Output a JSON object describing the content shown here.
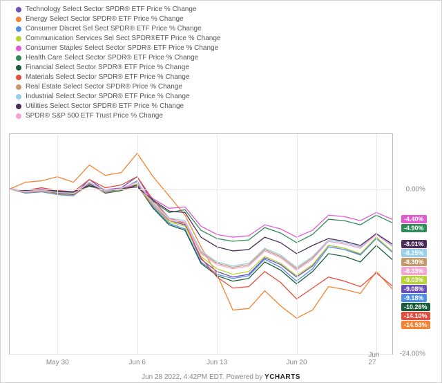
{
  "chart": {
    "type": "line",
    "background_color": "#ffffff",
    "grid_color": "#e8e8e8",
    "axis_color": "#c0c0c0",
    "label_color": "#888888",
    "label_fontsize": 10,
    "legend_fontsize": 10,
    "ylim": [
      -24,
      8
    ],
    "ytick_values": [
      0,
      -24
    ],
    "ytick_labels": [
      "0.00%",
      "-24.00%"
    ],
    "x_categories": [
      "May 30",
      "Jun 6",
      "Jun 13",
      "Jun 20",
      "Jun 27"
    ],
    "x_tick_indices": [
      3,
      8,
      13,
      18,
      23
    ],
    "n_points": 25,
    "series": [
      {
        "name": "Technology Select Sector SPDR® ETF Price % Change",
        "color": "#6b4fbb",
        "final": -9.08,
        "final_label": "-9.08%",
        "y": [
          0,
          -0.4,
          -0.2,
          -0.6,
          -0.9,
          1.4,
          -0.3,
          0.2,
          1.8,
          -2.0,
          -4.6,
          -5.2,
          -10.2,
          -12.0,
          -12.8,
          -12.4,
          -10.0,
          -11.0,
          -12.8,
          -11.2,
          -8.2,
          -8.6,
          -9.5,
          -7.0,
          -9.08
        ]
      },
      {
        "name": "Energy Select Sector SPDR® ETF Price % Change",
        "color": "#f58233",
        "final": -14.53,
        "final_label": "-14.53%",
        "y": [
          0,
          1.0,
          1.2,
          1.8,
          1.0,
          3.5,
          2.0,
          2.4,
          5.2,
          1.8,
          -1.0,
          -3.8,
          -8.4,
          -12.4,
          -17.6,
          -17.4,
          -14.8,
          -17.0,
          -18.8,
          -17.6,
          -14.2,
          -14.6,
          -15.2,
          -12.0,
          -14.53
        ]
      },
      {
        "name": "Consumer Discret Sel Sect SPDR® ETF Price % Change",
        "color": "#4f8fe6",
        "final": -9.18,
        "final_label": "-9.18%",
        "y": [
          0,
          -0.6,
          -0.4,
          -0.8,
          -1.0,
          1.0,
          -0.4,
          0.0,
          1.2,
          -2.6,
          -5.0,
          -5.8,
          -10.6,
          -12.4,
          -13.0,
          -12.6,
          -10.2,
          -11.4,
          -13.4,
          -11.6,
          -8.4,
          -8.8,
          -9.6,
          -7.2,
          -9.18
        ]
      },
      {
        "name": "Communication Services Sel Sect SPDR®ETF Price % Change",
        "color": "#b7d433",
        "final": -9.03,
        "final_label": "-9.03%",
        "y": [
          0,
          -0.5,
          -0.3,
          -0.7,
          -0.8,
          0.8,
          -0.6,
          -0.2,
          0.8,
          -2.4,
          -4.8,
          -5.4,
          -9.8,
          -11.6,
          -12.4,
          -12.0,
          -9.8,
          -10.8,
          -12.6,
          -11.0,
          -8.2,
          -8.6,
          -9.4,
          -7.0,
          -9.03
        ]
      },
      {
        "name": "Consumer Staples Select Sector SPDR® ETF Price % Change",
        "color": "#e05bd3",
        "final": -4.4,
        "final_label": "-4.40%",
        "y": [
          0,
          -0.2,
          0.0,
          -0.2,
          -0.4,
          0.6,
          -0.1,
          0.2,
          0.6,
          -1.4,
          -2.8,
          -2.6,
          -5.4,
          -6.6,
          -7.0,
          -6.8,
          -5.2,
          -5.8,
          -7.0,
          -6.0,
          -3.8,
          -4.0,
          -4.6,
          -3.4,
          -4.4
        ]
      },
      {
        "name": "Health Care Select Sector SPDR® ETF Price % Change",
        "color": "#2e8b57",
        "final": -4.9,
        "final_label": "-4.90%",
        "y": [
          0,
          -0.3,
          -0.1,
          -0.4,
          -0.5,
          0.4,
          -0.2,
          0.0,
          0.4,
          -1.8,
          -3.4,
          -3.0,
          -6.0,
          -7.2,
          -7.6,
          -7.4,
          -5.6,
          -6.4,
          -7.8,
          -6.6,
          -4.4,
          -4.6,
          -5.2,
          -3.8,
          -4.9
        ]
      },
      {
        "name": "Financial Select Sector SPDR® ETF Price % Change",
        "color": "#1a5c3a",
        "final": -10.26,
        "final_label": "-10.26%",
        "y": [
          0,
          -0.4,
          -0.2,
          -0.6,
          -0.8,
          0.8,
          -0.6,
          -0.2,
          0.6,
          -2.8,
          -5.2,
          -6.0,
          -10.8,
          -12.6,
          -13.4,
          -13.0,
          -10.6,
          -11.8,
          -13.8,
          -12.0,
          -9.4,
          -9.8,
          -10.6,
          -8.2,
          -10.26
        ]
      },
      {
        "name": "Materials Select Sector SPDR® ETF Price % Change",
        "color": "#e74c3c",
        "final": -14.1,
        "final_label": "-14.10%",
        "y": [
          0,
          -0.2,
          0.2,
          -0.2,
          -0.4,
          1.4,
          0.2,
          0.6,
          1.8,
          -1.6,
          -4.2,
          -5.0,
          -10.0,
          -12.8,
          -14.4,
          -14.2,
          -12.0,
          -13.6,
          -16.0,
          -14.4,
          -12.8,
          -13.4,
          -14.2,
          -12.2,
          -14.1
        ]
      },
      {
        "name": "Real Estate Select Sector SPDR® Price % Change",
        "color": "#c59a6b",
        "final": -8.3,
        "final_label": "-8.30%",
        "y": [
          0,
          -0.5,
          -0.3,
          -0.7,
          -0.9,
          0.6,
          -0.5,
          -0.1,
          0.4,
          -2.4,
          -4.6,
          -5.0,
          -9.2,
          -10.8,
          -11.4,
          -11.0,
          -8.8,
          -9.8,
          -11.6,
          -10.0,
          -7.6,
          -8.0,
          -8.6,
          -6.6,
          -8.3
        ]
      },
      {
        "name": "Industrial Select Sector SPDR® ETF Price % Change",
        "color": "#9acfea",
        "final": -8.25,
        "final_label": "-8.25%",
        "y": [
          0,
          -0.3,
          -0.1,
          -0.5,
          -0.6,
          1.0,
          -0.2,
          0.2,
          1.0,
          -2.0,
          -4.2,
          -4.6,
          -9.0,
          -10.6,
          -11.2,
          -10.8,
          -8.6,
          -9.6,
          -11.4,
          -9.8,
          -7.4,
          -7.8,
          -8.4,
          -6.4,
          -8.25
        ]
      },
      {
        "name": "Utilities Select Sector SPDR® ETF Price % Change",
        "color": "#4a2c5a",
        "final": -8.01,
        "final_label": "-8.01%",
        "y": [
          0,
          -0.2,
          0.0,
          -0.3,
          -0.4,
          0.5,
          -0.1,
          0.1,
          0.3,
          -1.6,
          -3.2,
          -3.4,
          -7.0,
          -8.4,
          -9.0,
          -8.8,
          -7.0,
          -7.8,
          -9.4,
          -8.2,
          -7.2,
          -7.6,
          -8.2,
          -6.5,
          -8.01
        ]
      },
      {
        "name": "SPDR® S&P 500 ETF Trust Price % Change",
        "color": "#f2a6d4",
        "final": -8.33,
        "final_label": "-8.33%",
        "y": [
          0,
          -0.4,
          -0.2,
          -0.5,
          -0.7,
          0.9,
          -0.3,
          0.1,
          1.0,
          -2.2,
          -4.4,
          -4.8,
          -9.4,
          -11.0,
          -11.6,
          -11.2,
          -9.0,
          -10.0,
          -11.8,
          -10.2,
          -7.6,
          -8.0,
          -8.6,
          -6.6,
          -8.33
        ]
      }
    ]
  },
  "footer": {
    "timestamp": "Jun 28 2022, 4:42PM EDT.",
    "powered_by_prefix": "Powered by ",
    "brand": "YCHARTS"
  }
}
